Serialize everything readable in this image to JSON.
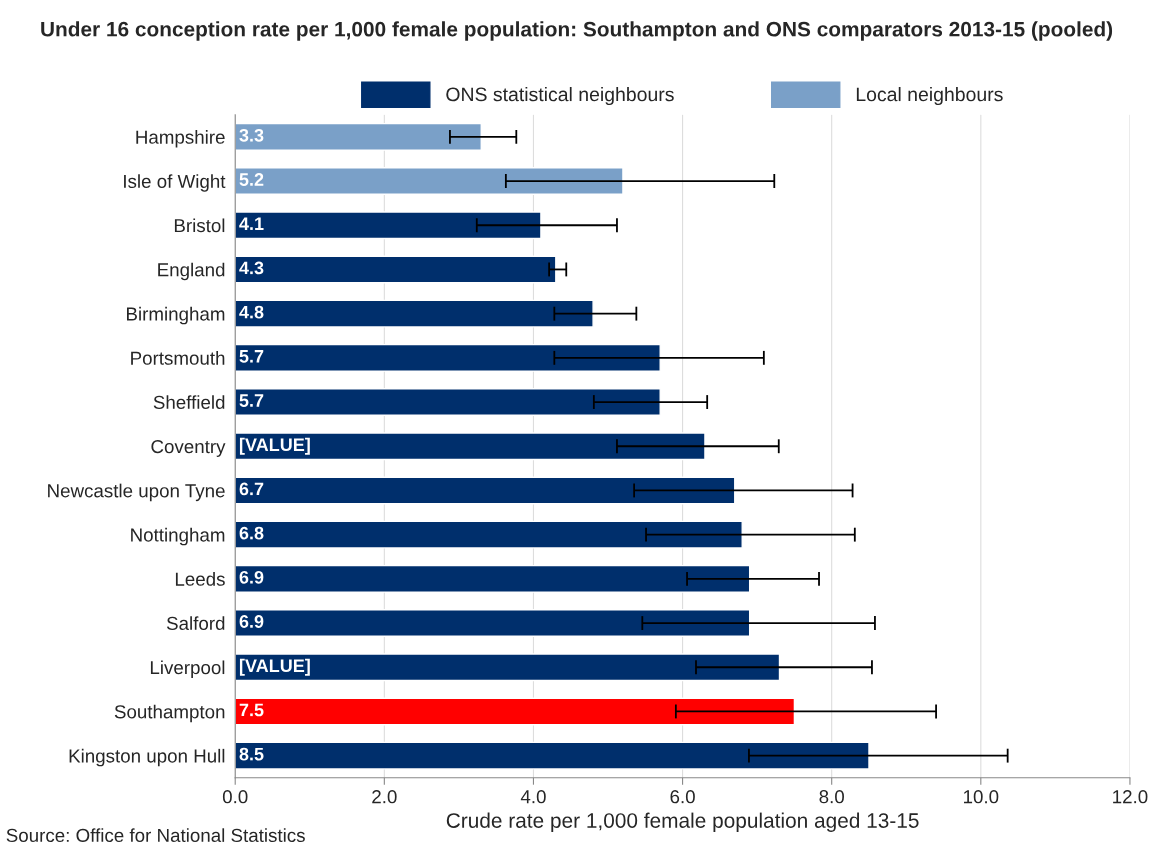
{
  "chart_data": {
    "type": "bar",
    "orientation": "horizontal",
    "title": "Under 16 conception rate per 1,000 female population: Southampton and ONS comparators 2013-15 (pooled)",
    "xlabel": "Crude rate per 1,000 female population aged 13-15",
    "categories": [
      "Hampshire",
      "Isle of Wight",
      "Bristol",
      "England",
      "Birmingham",
      "Portsmouth",
      "Sheffield",
      "Coventry",
      "Newcastle upon Tyne",
      "Nottingham",
      "Leeds",
      "Salford",
      "Liverpool",
      "Southampton",
      "Kingston upon Hull"
    ],
    "series": [
      {
        "name": "ONS statistical neighbours",
        "color": "#002f6c",
        "colors": [
          null,
          null,
          "#002f6c",
          "#002f6c",
          "#002f6c",
          "#002f6c",
          "#002f6c",
          "#002f6c",
          "#002f6c",
          "#002f6c",
          "#002f6c",
          "#002f6c",
          "#002f6c",
          "#ff0000",
          "#002f6c"
        ],
        "values": [
          null,
          null,
          4.1,
          4.3,
          4.8,
          5.7,
          5.7,
          6.3,
          6.7,
          6.8,
          6.9,
          6.9,
          7.3,
          7.5,
          8.5
        ],
        "value_labels": [
          null,
          null,
          "4.1",
          "4.3",
          "4.8",
          "5.7",
          "5.7",
          "[VALUE]",
          "6.7",
          "6.8",
          "6.9",
          "6.9",
          "[VALUE]",
          "7.5",
          "8.5"
        ],
        "errors": [
          null,
          null,
          [
            3.24,
            5.12
          ],
          [
            4.21,
            4.44
          ],
          [
            4.28,
            5.38
          ],
          [
            4.28,
            7.09
          ],
          [
            4.81,
            6.33
          ],
          [
            5.12,
            7.29
          ],
          [
            5.35,
            8.28
          ],
          [
            5.51,
            8.31
          ],
          [
            6.06,
            7.83
          ],
          [
            5.46,
            8.58
          ],
          [
            6.18,
            8.54
          ],
          [
            5.91,
            9.4
          ],
          [
            6.89,
            10.36
          ]
        ]
      },
      {
        "name": "Local neighbours",
        "color": "#7aa0c8",
        "values": [
          3.3,
          5.2,
          null,
          null,
          null,
          null,
          null,
          null,
          null,
          null,
          null,
          null,
          null,
          null,
          null
        ],
        "value_labels": [
          "3.3",
          "5.2",
          null,
          null,
          null,
          null,
          null,
          null,
          null,
          null,
          null,
          null,
          null,
          null,
          null
        ],
        "errors": [
          [
            2.88,
            3.77
          ],
          [
            3.63,
            7.23
          ],
          null,
          null,
          null,
          null,
          null,
          null,
          null,
          null,
          null,
          null,
          null,
          null,
          null
        ]
      }
    ],
    "xlim": [
      0,
      12
    ],
    "xticks": [
      {
        "value": 0,
        "label": "0.0"
      },
      {
        "value": 2,
        "label": "2.0"
      },
      {
        "value": 4,
        "label": "4.0"
      },
      {
        "value": 6,
        "label": "6.0"
      },
      {
        "value": 8,
        "label": "8.0"
      },
      {
        "value": 10,
        "label": "10.0"
      },
      {
        "value": 12,
        "label": "12.0"
      }
    ],
    "grid": "x",
    "legend": "top",
    "annotations": [
      "Source: Office for National Statistics"
    ]
  }
}
